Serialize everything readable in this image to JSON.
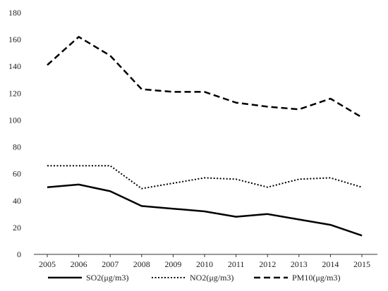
{
  "chart_data": {
    "type": "line",
    "title": "",
    "xlabel": "",
    "ylabel": "",
    "categories": [
      "2005",
      "2006",
      "2007",
      "2008",
      "2009",
      "2010",
      "2011",
      "2012",
      "2013",
      "2014",
      "2015"
    ],
    "ylim": [
      0,
      180
    ],
    "yticks": [
      "0",
      "20",
      "40",
      "60",
      "80",
      "100",
      "120",
      "140",
      "160",
      "180"
    ],
    "grid": false,
    "legend_position": "bottom",
    "series": [
      {
        "name": "SO2(μg/m3)",
        "style": "solid",
        "color": "#000000",
        "values": [
          50,
          52,
          47,
          36,
          34,
          32,
          28,
          30,
          26,
          22,
          14
        ]
      },
      {
        "name": "NO2(μg/m3)",
        "style": "dotted",
        "color": "#000000",
        "values": [
          66,
          66,
          66,
          49,
          53,
          57,
          56,
          50,
          56,
          57,
          50
        ]
      },
      {
        "name": "PM10(μg/m3)",
        "style": "dashed",
        "color": "#000000",
        "values": [
          141,
          162,
          148,
          123,
          121,
          121,
          113,
          110,
          108,
          116,
          102
        ]
      }
    ]
  }
}
